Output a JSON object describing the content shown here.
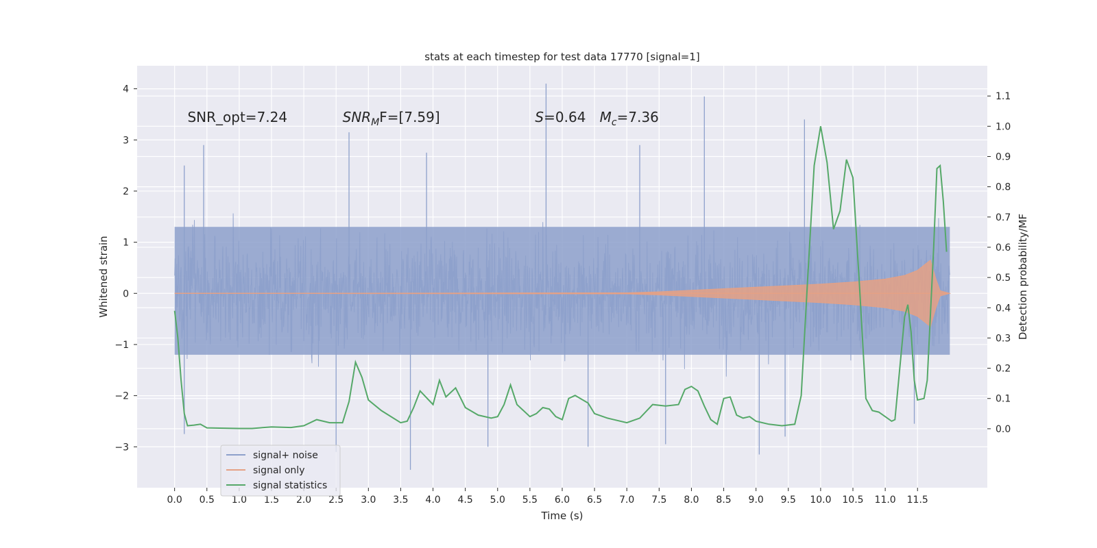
{
  "chart_data": {
    "type": "line",
    "title": "stats at each timestep for test data 17770 [signal=1]",
    "xlabel": "Time (s)",
    "ylabel_left": "Whitened strain",
    "ylabel_right": "Detection probability/MF",
    "xlim": [
      -0.58,
      12.58
    ],
    "ylim_left": [
      -3.8,
      4.45
    ],
    "ylim_right": [
      -0.195,
      1.2
    ],
    "x_ticks": [
      0.0,
      0.5,
      1.0,
      1.5,
      2.0,
      2.5,
      3.0,
      3.5,
      4.0,
      4.5,
      5.0,
      5.5,
      6.0,
      6.5,
      7.0,
      7.5,
      8.0,
      8.5,
      9.0,
      9.5,
      10.0,
      10.5,
      11.0,
      11.5
    ],
    "x_tick_labels": [
      "0.0",
      "0.5",
      "1.0",
      "1.5",
      "2.0",
      "2.5",
      "3.0",
      "3.5",
      "4.0",
      "4.5",
      "5.0",
      "5.5",
      "6.0",
      "6.5",
      "7.0",
      "7.5",
      "8.0",
      "8.5",
      "9.0",
      "9.5",
      "10.0",
      "10.5",
      "11.0",
      "11.5"
    ],
    "y_left_ticks": [
      -3,
      -2,
      -1,
      0,
      1,
      2,
      3,
      4
    ],
    "y_left_tick_labels": [
      "−3",
      "−2",
      "−1",
      "0",
      "1",
      "2",
      "3",
      "4"
    ],
    "y_right_ticks": [
      0.0,
      0.1,
      0.2,
      0.3,
      0.4,
      0.5,
      0.6,
      0.7,
      0.8,
      0.9,
      1.0,
      1.1
    ],
    "y_right_tick_labels": [
      "0.0",
      "0.1",
      "0.2",
      "0.3",
      "0.4",
      "0.5",
      "0.6",
      "0.7",
      "0.8",
      "0.9",
      "1.0",
      "1.1"
    ],
    "grid": true,
    "legend_position": "lower-left",
    "annotations": [
      {
        "text": "SNR_opt=7.24",
        "x": 0.2,
        "y": 3.35
      },
      {
        "text_main": "SNR",
        "text_sub": "M",
        "text_tail": "F=[7.59]",
        "x": 2.6,
        "y": 3.35
      },
      {
        "text_italic": "S",
        "text_tail": "=0.64",
        "x": 5.58,
        "y": 3.35
      },
      {
        "text_italic": "M",
        "text_sub": "c",
        "text_tail": "=7.36",
        "x": 6.58,
        "y": 3.35
      }
    ],
    "series": [
      {
        "name": "signal+ noise",
        "axis": "left",
        "color": "#8da0cb",
        "kind": "dense-noise",
        "x_range": [
          0.0,
          12.0
        ],
        "core_band": [
          -1.2,
          1.3
        ],
        "peaks_up": [
          [
            0.15,
            2.5
          ],
          [
            0.45,
            2.9
          ],
          [
            2.7,
            3.15
          ],
          [
            5.75,
            4.1
          ],
          [
            8.2,
            3.85
          ],
          [
            9.75,
            3.4
          ],
          [
            7.2,
            2.9
          ],
          [
            3.9,
            2.75
          ]
        ],
        "peaks_down": [
          [
            0.15,
            -2.75
          ],
          [
            3.65,
            -3.45
          ],
          [
            2.5,
            -3.1
          ],
          [
            4.85,
            -3.0
          ],
          [
            6.4,
            -3.0
          ],
          [
            7.6,
            -2.95
          ],
          [
            9.05,
            -3.15
          ],
          [
            9.45,
            -2.8
          ],
          [
            11.45,
            -2.55
          ]
        ]
      },
      {
        "name": "signal only",
        "axis": "left",
        "color": "#e5a185",
        "kind": "chirp-envelope",
        "points": [
          [
            0.0,
            0.0
          ],
          [
            7.0,
            0.01
          ],
          [
            7.5,
            0.03
          ],
          [
            8.0,
            0.06
          ],
          [
            8.5,
            0.09
          ],
          [
            9.0,
            0.12
          ],
          [
            9.5,
            0.15
          ],
          [
            10.0,
            0.18
          ],
          [
            10.5,
            0.22
          ],
          [
            11.0,
            0.28
          ],
          [
            11.3,
            0.35
          ],
          [
            11.5,
            0.45
          ],
          [
            11.6,
            0.55
          ],
          [
            11.7,
            0.65
          ],
          [
            11.78,
            0.3
          ],
          [
            11.85,
            0.05
          ],
          [
            12.0,
            0.0
          ]
        ]
      },
      {
        "name": "signal statistics",
        "axis": "right",
        "color": "#55a868",
        "x": [
          0.0,
          0.05,
          0.1,
          0.15,
          0.2,
          0.3,
          0.4,
          0.5,
          0.7,
          1.0,
          1.2,
          1.5,
          1.8,
          2.0,
          2.2,
          2.4,
          2.6,
          2.7,
          2.8,
          2.9,
          3.0,
          3.2,
          3.5,
          3.6,
          3.7,
          3.8,
          4.0,
          4.1,
          4.2,
          4.35,
          4.5,
          4.7,
          4.9,
          5.0,
          5.1,
          5.2,
          5.3,
          5.5,
          5.6,
          5.7,
          5.8,
          5.9,
          6.0,
          6.1,
          6.2,
          6.4,
          6.5,
          6.7,
          7.0,
          7.2,
          7.4,
          7.6,
          7.8,
          7.9,
          8.0,
          8.1,
          8.2,
          8.3,
          8.4,
          8.5,
          8.6,
          8.7,
          8.8,
          8.9,
          9.0,
          9.2,
          9.4,
          9.6,
          9.7,
          9.8,
          9.9,
          10.0,
          10.1,
          10.2,
          10.3,
          10.4,
          10.5,
          10.6,
          10.7,
          10.8,
          10.9,
          11.0,
          11.1,
          11.15,
          11.3,
          11.35,
          11.4,
          11.45,
          11.5,
          11.6,
          11.65,
          11.75,
          11.8,
          11.85,
          11.9,
          11.95
        ],
        "y": [
          0.39,
          0.3,
          0.16,
          0.05,
          0.01,
          0.012,
          0.015,
          0.003,
          0.002,
          0.001,
          0.001,
          0.006,
          0.004,
          0.01,
          0.03,
          0.02,
          0.02,
          0.09,
          0.22,
          0.17,
          0.095,
          0.06,
          0.02,
          0.025,
          0.07,
          0.125,
          0.08,
          0.16,
          0.105,
          0.135,
          0.07,
          0.045,
          0.035,
          0.04,
          0.08,
          0.145,
          0.08,
          0.04,
          0.05,
          0.07,
          0.065,
          0.04,
          0.03,
          0.1,
          0.11,
          0.085,
          0.05,
          0.035,
          0.02,
          0.035,
          0.08,
          0.075,
          0.08,
          0.13,
          0.14,
          0.125,
          0.075,
          0.03,
          0.015,
          0.1,
          0.105,
          0.045,
          0.035,
          0.04,
          0.025,
          0.015,
          0.01,
          0.015,
          0.11,
          0.5,
          0.87,
          1.0,
          0.88,
          0.66,
          0.72,
          0.89,
          0.83,
          0.48,
          0.1,
          0.06,
          0.055,
          0.04,
          0.025,
          0.03,
          0.37,
          0.41,
          0.32,
          0.16,
          0.095,
          0.1,
          0.16,
          0.6,
          0.86,
          0.87,
          0.75,
          0.585
        ]
      }
    ]
  }
}
